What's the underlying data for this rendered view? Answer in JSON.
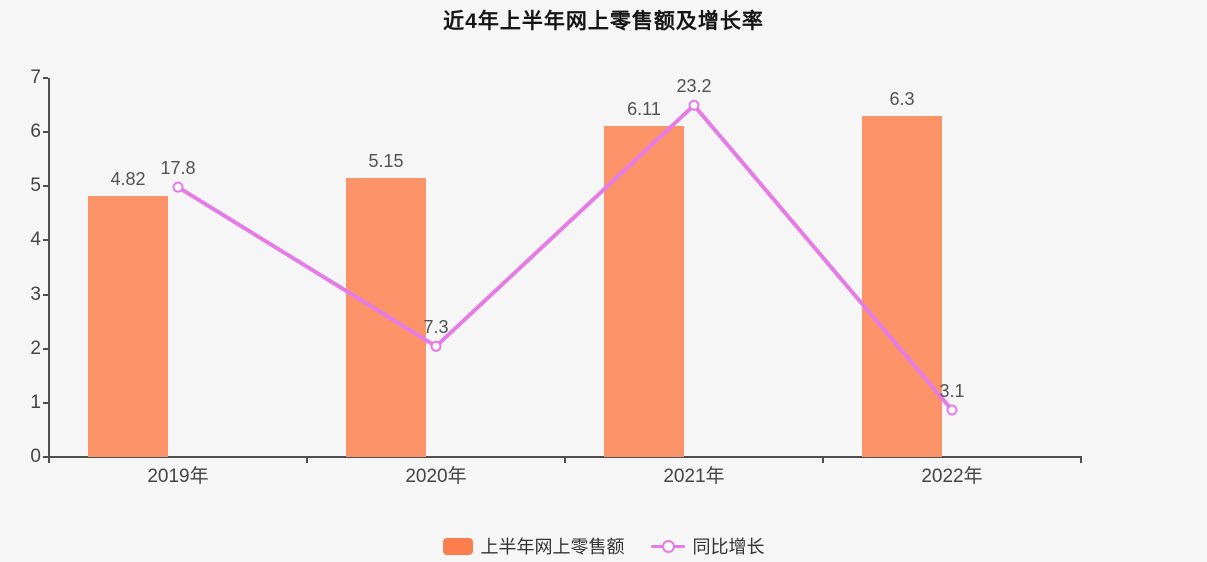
{
  "chart_data": {
    "type": "bar+line",
    "title": "近4年上半年网上零售额及增长率",
    "categories": [
      "2019年",
      "2020年",
      "2021年",
      "2022年"
    ],
    "series": [
      {
        "name": "上半年网上零售额",
        "type": "bar",
        "yaxis": "left",
        "values": [
          4.82,
          5.15,
          6.11,
          6.3
        ]
      },
      {
        "name": "同比增长",
        "type": "line",
        "yaxis": "right",
        "values": [
          17.8,
          7.3,
          23.2,
          3.1
        ]
      }
    ],
    "left_axis": {
      "min": 0,
      "max": 7,
      "tick_step": 1,
      "tick_labels": [
        "0",
        "1",
        "2",
        "3",
        "4",
        "5",
        "6",
        "7"
      ]
    },
    "right_axis": {
      "min": 0,
      "max": 25,
      "visible": false
    },
    "grid_lines": false,
    "legend_position": "bottom",
    "data_labels_shown": true
  },
  "colors": {
    "background": "#f6f6f7",
    "bar_fill": "#fb9268",
    "bar_legend_swatch": "#fa7e4e",
    "line_stroke": "#e57ce6",
    "marker_fill": "#fdfdfe",
    "axis_line": "#4f4f4f",
    "axis_text": "#444444",
    "data_label_text": "#515151",
    "legend_text": "#333333",
    "title_text": "#151515"
  }
}
